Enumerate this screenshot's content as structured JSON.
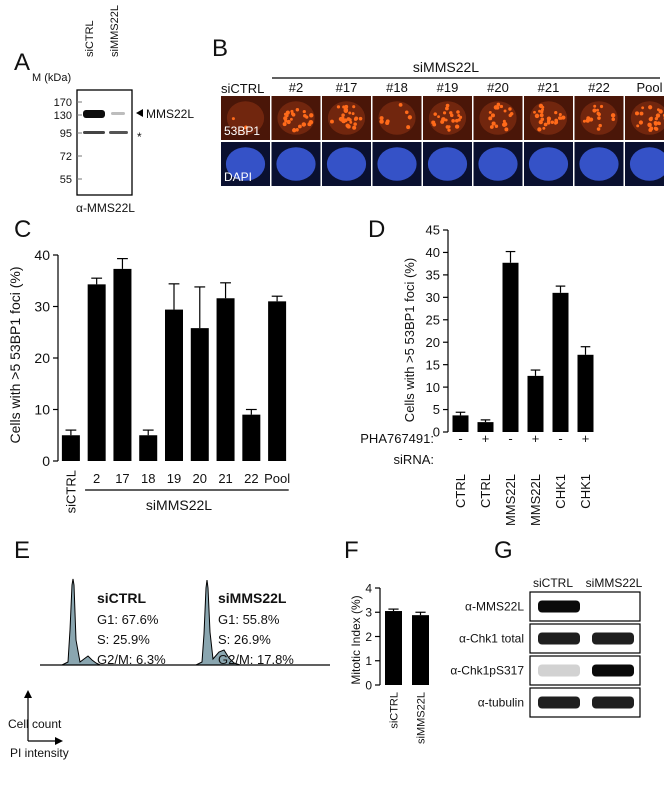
{
  "colors": {
    "bar": "#000000",
    "foci_background": "#4a1608",
    "foci_dot": "#ff6a1a",
    "dapi_background": "#0a1030",
    "dapi_nucleus": "#3a5ad8",
    "histogram_fill": "#8aa6b0"
  },
  "panels": {
    "A": {
      "letter": "A",
      "lane_labels": [
        "siCTRL",
        "siMMS22L"
      ],
      "mass_unit": "M (kDa)",
      "markers": [
        "170",
        "130",
        "95",
        "72",
        "55"
      ],
      "band_label": "MMS22L",
      "nonspecific_mark": "*",
      "antibody": "α-MMS22L"
    },
    "B": {
      "letter": "B",
      "group_label": "siMMS22L",
      "control_label": "siCTRL",
      "columns": [
        "#2",
        "#17",
        "#18",
        "#19",
        "#20",
        "#21",
        "#22",
        "Pool"
      ],
      "row_labels": [
        "53BP1",
        "DAPI"
      ]
    },
    "E": {
      "letter": "E",
      "axis_y": "Cell count",
      "axis_x": "PI intensity",
      "samples": [
        {
          "name": "siCTRL",
          "g1": "G1: 67.6%",
          "s": "S: 25.9%",
          "g2m": "G2/M: 6.3%"
        },
        {
          "name": "siMMS22L",
          "g1": "G1: 55.8%",
          "s": "S: 26.9%",
          "g2m": "G2/M: 17.8%"
        }
      ]
    },
    "G": {
      "letter": "G",
      "lane_labels": [
        "siCTRL",
        "siMMS22L"
      ],
      "rows": [
        "α-MMS22L",
        "α-Chk1 total",
        "α-Chk1pS317",
        "α-tubulin"
      ],
      "band_intensity": [
        [
          1.0,
          0.0
        ],
        [
          0.9,
          0.9
        ],
        [
          0.05,
          1.0
        ],
        [
          0.9,
          0.9
        ]
      ]
    }
  },
  "chart_data": [
    {
      "id": "C",
      "letter": "C",
      "type": "bar",
      "ylabel": "Cells with >5 53BP1 foci (%)",
      "ylim": [
        0,
        40
      ],
      "yticks": [
        "0",
        "10",
        "20",
        "30",
        "40"
      ],
      "categories": [
        "siCTRL",
        "2",
        "17",
        "18",
        "19",
        "20",
        "21",
        "22",
        "Pool"
      ],
      "values": [
        5,
        34.3,
        37.3,
        5,
        29.4,
        25.8,
        31.6,
        9,
        31
      ],
      "errors": [
        1,
        1.2,
        2,
        1,
        5,
        8,
        3,
        1,
        1
      ],
      "group_label": "siMMS22L"
    },
    {
      "id": "D",
      "letter": "D",
      "type": "bar",
      "ylabel": "Cells with >5 53BP1 foci (%)",
      "ylim": [
        0,
        45
      ],
      "yticks": [
        "0",
        "5",
        "10",
        "15",
        "20",
        "25",
        "30",
        "35",
        "40",
        "45"
      ],
      "treatment_label": "PHA767491:",
      "treatments": [
        "-",
        "+",
        "-",
        "+",
        "-",
        "+"
      ],
      "sirna_label": "siRNA:",
      "categories": [
        "CTRL",
        "CTRL",
        "MMS22L",
        "MMS22L",
        "CHK1",
        "CHK1"
      ],
      "values": [
        3.7,
        2.2,
        37.7,
        12.5,
        31,
        17.2
      ],
      "errors": [
        0.7,
        0.5,
        2.5,
        1.3,
        1.5,
        1.8
      ]
    },
    {
      "id": "F",
      "letter": "F",
      "type": "bar",
      "ylabel": "Mitotic Index (%)",
      "ylim": [
        0,
        4
      ],
      "yticks": [
        "0",
        "1",
        "2",
        "3",
        "4"
      ],
      "categories": [
        "siCTRL",
        "siMMS22L"
      ],
      "values": [
        3.05,
        2.88
      ],
      "errors": [
        0.08,
        0.12
      ]
    }
  ]
}
